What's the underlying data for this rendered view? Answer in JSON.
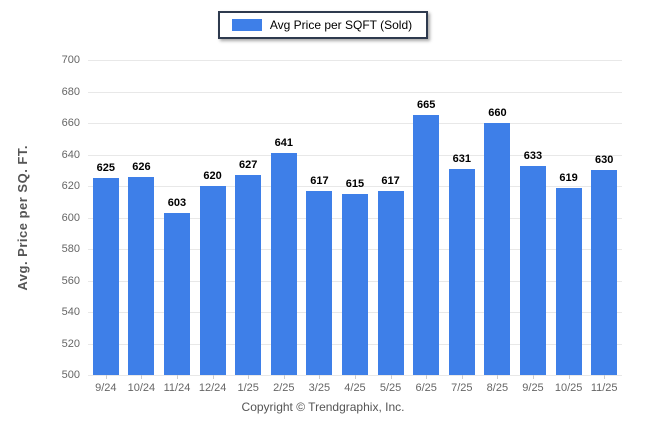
{
  "legend": {
    "label": "Avg Price per SQFT (Sold)"
  },
  "y_axis": {
    "title": "Avg. Price per SQ. FT."
  },
  "footer": {
    "copyright": "Copyright © Trendgraphix, Inc."
  },
  "chart_data": {
    "type": "bar",
    "title": "",
    "series_name": "Avg Price per SQFT (Sold)",
    "categories": [
      "9/24",
      "10/24",
      "11/24",
      "12/24",
      "1/25",
      "2/25",
      "3/25",
      "4/25",
      "5/25",
      "6/25",
      "7/25",
      "8/25",
      "9/25",
      "10/25",
      "11/25"
    ],
    "values": [
      625,
      626,
      603,
      620,
      627,
      641,
      617,
      615,
      617,
      665,
      631,
      660,
      633,
      619,
      630
    ],
    "xlabel": "",
    "ylabel": "Avg. Price per SQ. FT.",
    "ylim": [
      500,
      700
    ],
    "yticks": [
      700,
      680,
      660,
      640,
      620,
      600,
      580,
      560,
      540,
      520,
      500
    ],
    "grid": true,
    "legend_position": "top-center",
    "bar_color": "#3e7fe8",
    "grid_color": "#e8e8e8",
    "tick_label_color": "#666666",
    "value_label_color": "#000000"
  }
}
